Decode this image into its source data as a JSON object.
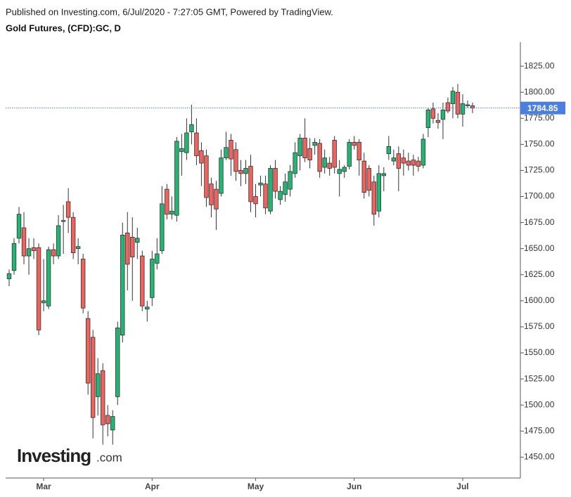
{
  "header": "Published on Investing.com, 6/Jul/2020 - 7:27:05 GMT, Powered by TradingView.",
  "watermark": {
    "brand": "Investing",
    "suffix": ".com"
  },
  "chart_data": {
    "type": "candlestick",
    "title": "Gold Futures, (CFD):GC, D",
    "categories": [
      null,
      null,
      null,
      null,
      null,
      null,
      null,
      "Mar",
      null,
      null,
      null,
      null,
      null,
      null,
      null,
      null,
      null,
      null,
      null,
      null,
      null,
      null,
      null,
      null,
      null,
      null,
      null,
      null,
      null,
      "Apr",
      null,
      null,
      null,
      null,
      null,
      null,
      null,
      null,
      null,
      null,
      null,
      null,
      null,
      null,
      null,
      null,
      null,
      null,
      null,
      null,
      "May",
      null,
      null,
      null,
      null,
      null,
      null,
      null,
      null,
      null,
      null,
      null,
      null,
      null,
      null,
      null,
      null,
      null,
      null,
      null,
      "Jun",
      null,
      null,
      null,
      null,
      null,
      null,
      null,
      null,
      null,
      null,
      null,
      null,
      null,
      null,
      null,
      null,
      null,
      null,
      null,
      null,
      null,
      "Jul",
      null,
      null
    ],
    "open": [
      1621,
      1629,
      1660,
      1670,
      1643,
      1651,
      1651,
      1598,
      1595,
      1649,
      1643,
      1677,
      1695,
      1680,
      1650,
      1640,
      1583,
      1565,
      1508,
      1533,
      1490,
      1476,
      1508,
      1567,
      1665,
      1661,
      1656,
      1643,
      1592,
      1603,
      1636,
      1648,
      1707,
      1683,
      1682,
      1743,
      1742,
      1762,
      1761,
      1744,
      1739,
      1712,
      1707,
      1703,
      1737,
      1754,
      1745,
      1725,
      1722,
      1729,
      1700,
      1711,
      1712,
      1686,
      1727,
      1697,
      1702,
      1707,
      1722,
      1739,
      1756,
      1746,
      1749,
      1751,
      1728,
      1732,
      1754,
      1722,
      1724,
      1729,
      1752,
      1752,
      1734,
      1727,
      1714,
      1686,
      1720,
      1741,
      1734,
      1741,
      1737,
      1734,
      1735,
      1734,
      1730,
      1766,
      1784,
      1773,
      1774,
      1790,
      1789,
      1800,
      1779,
      1787,
      1787
    ],
    "high": [
      1630,
      1660,
      1690,
      1685,
      1660,
      1660,
      1655,
      1640,
      1652,
      1655,
      1682,
      1692,
      1708,
      1685,
      1660,
      1645,
      1590,
      1572,
      1545,
      1540,
      1500,
      1495,
      1580,
      1675,
      1685,
      1680,
      1670,
      1648,
      1600,
      1648,
      1660,
      1710,
      1712,
      1700,
      1757,
      1760,
      1775,
      1788,
      1775,
      1752,
      1745,
      1718,
      1715,
      1745,
      1762,
      1760,
      1752,
      1735,
      1735,
      1740,
      1712,
      1720,
      1720,
      1730,
      1735,
      1710,
      1722,
      1730,
      1752,
      1760,
      1775,
      1756,
      1756,
      1755,
      1745,
      1738,
      1758,
      1735,
      1730,
      1755,
      1758,
      1755,
      1742,
      1730,
      1720,
      1730,
      1728,
      1758,
      1745,
      1748,
      1745,
      1742,
      1740,
      1738,
      1760,
      1785,
      1790,
      1780,
      1790,
      1795,
      1805,
      1808,
      1798,
      1792,
      1790
    ],
    "low": [
      1614,
      1625,
      1655,
      1635,
      1625,
      1640,
      1567,
      1590,
      1592,
      1635,
      1640,
      1645,
      1665,
      1640,
      1635,
      1588,
      1510,
      1468,
      1490,
      1462,
      1470,
      1462,
      1500,
      1560,
      1610,
      1600,
      1640,
      1590,
      1580,
      1595,
      1630,
      1645,
      1678,
      1678,
      1676,
      1720,
      1735,
      1750,
      1730,
      1710,
      1690,
      1680,
      1668,
      1700,
      1735,
      1720,
      1715,
      1710,
      1712,
      1685,
      1680,
      1700,
      1683,
      1683,
      1698,
      1692,
      1695,
      1700,
      1718,
      1725,
      1733,
      1727,
      1740,
      1718,
      1722,
      1720,
      1722,
      1700,
      1718,
      1726,
      1745,
      1720,
      1698,
      1700,
      1672,
      1680,
      1705,
      1735,
      1730,
      1705,
      1720,
      1725,
      1720,
      1724,
      1727,
      1757,
      1770,
      1765,
      1755,
      1780,
      1775,
      1775,
      1767,
      1785,
      1780
    ],
    "close": [
      1626,
      1655,
      1683,
      1643,
      1650,
      1648,
      1572,
      1600,
      1649,
      1643,
      1672,
      1676,
      1680,
      1646,
      1652,
      1593,
      1521,
      1488,
      1530,
      1481,
      1482,
      1489,
      1574,
      1663,
      1635,
      1642,
      1660,
      1595,
      1594,
      1640,
      1645,
      1693,
      1683,
      1686,
      1753,
      1746,
      1761,
      1769,
      1739,
      1732,
      1699,
      1692,
      1688,
      1737,
      1747,
      1736,
      1724,
      1722,
      1727,
      1695,
      1693,
      1713,
      1689,
      1727,
      1705,
      1705,
      1714,
      1724,
      1742,
      1756,
      1737,
      1735,
      1752,
      1724,
      1737,
      1727,
      1728,
      1726,
      1728,
      1752,
      1749,
      1735,
      1704,
      1706,
      1683,
      1722,
      1722,
      1748,
      1737,
      1727,
      1732,
      1730,
      1730,
      1729,
      1755,
      1783,
      1775,
      1771,
      1783,
      1782,
      1801,
      1779,
      1789,
      1788,
      1784.85
    ],
    "up_color": "#22b573",
    "down_color": "#f0625d",
    "last_price": 1784.85,
    "last_price_color": "#4a7fe0",
    "ylim": [
      1430,
      1848
    ],
    "yticks": [
      {
        "value": 1450,
        "label": "1450.00"
      },
      {
        "value": 1475,
        "label": "1475.00"
      },
      {
        "value": 1500,
        "label": "1500.00"
      },
      {
        "value": 1525,
        "label": "1525.00"
      },
      {
        "value": 1550,
        "label": "1550.00"
      },
      {
        "value": 1575,
        "label": "1575.00"
      },
      {
        "value": 1600,
        "label": "1600.00"
      },
      {
        "value": 1625,
        "label": "1625.00"
      },
      {
        "value": 1650,
        "label": "1650.00"
      },
      {
        "value": 1675,
        "label": "1675.00"
      },
      {
        "value": 1700,
        "label": "1700.00"
      },
      {
        "value": 1725,
        "label": "1725.00"
      },
      {
        "value": 1750,
        "label": "1750.00"
      },
      {
        "value": 1775,
        "label": "1775.00"
      },
      {
        "value": 1800,
        "label": "1800.00"
      },
      {
        "value": 1825,
        "label": "1825.00"
      }
    ],
    "grid": false
  }
}
